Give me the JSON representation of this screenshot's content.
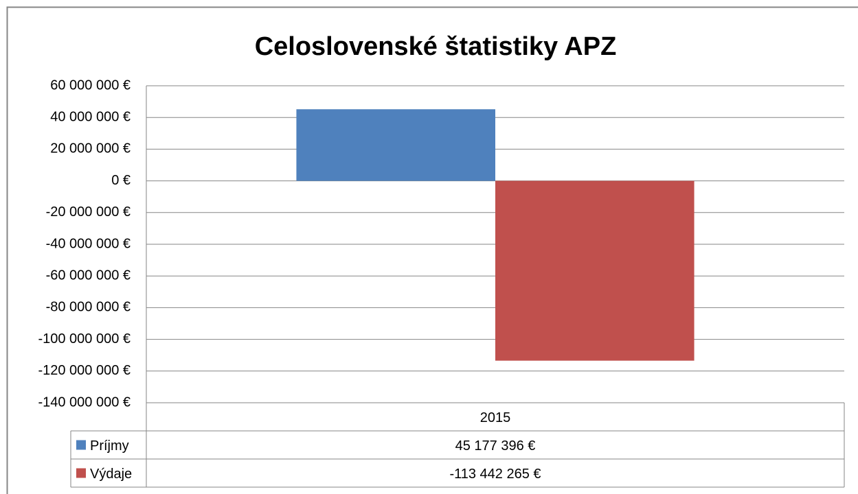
{
  "chart_data": {
    "type": "bar",
    "title": "Celoslovenské štatistiky APZ",
    "categories": [
      "2015"
    ],
    "series": [
      {
        "name": "Príjmy",
        "color": "#4f81bd",
        "values": [
          45177396
        ],
        "value_labels": [
          "45 177 396 €"
        ]
      },
      {
        "name": "Výdaje",
        "color": "#c0504d",
        "values": [
          -113442265
        ],
        "value_labels": [
          "-113 442 265 €"
        ]
      }
    ],
    "ylim": [
      -140000000,
      60000000
    ],
    "yticks": [
      {
        "value": 60000000,
        "label": "60 000 000 €"
      },
      {
        "value": 40000000,
        "label": "40 000 000 €"
      },
      {
        "value": 20000000,
        "label": "20 000 000 €"
      },
      {
        "value": 0,
        "label": "0 €"
      },
      {
        "value": -20000000,
        "label": "-20 000 000 €"
      },
      {
        "value": -40000000,
        "label": "-40 000 000 €"
      },
      {
        "value": -60000000,
        "label": "-60 000 000 €"
      },
      {
        "value": -80000000,
        "label": "-80 000 000 €"
      },
      {
        "value": -100000000,
        "label": "-100 000 000 €"
      },
      {
        "value": -120000000,
        "label": "-120 000 000 €"
      },
      {
        "value": -140000000,
        "label": "-140 000 000 €"
      }
    ],
    "grid": true
  }
}
